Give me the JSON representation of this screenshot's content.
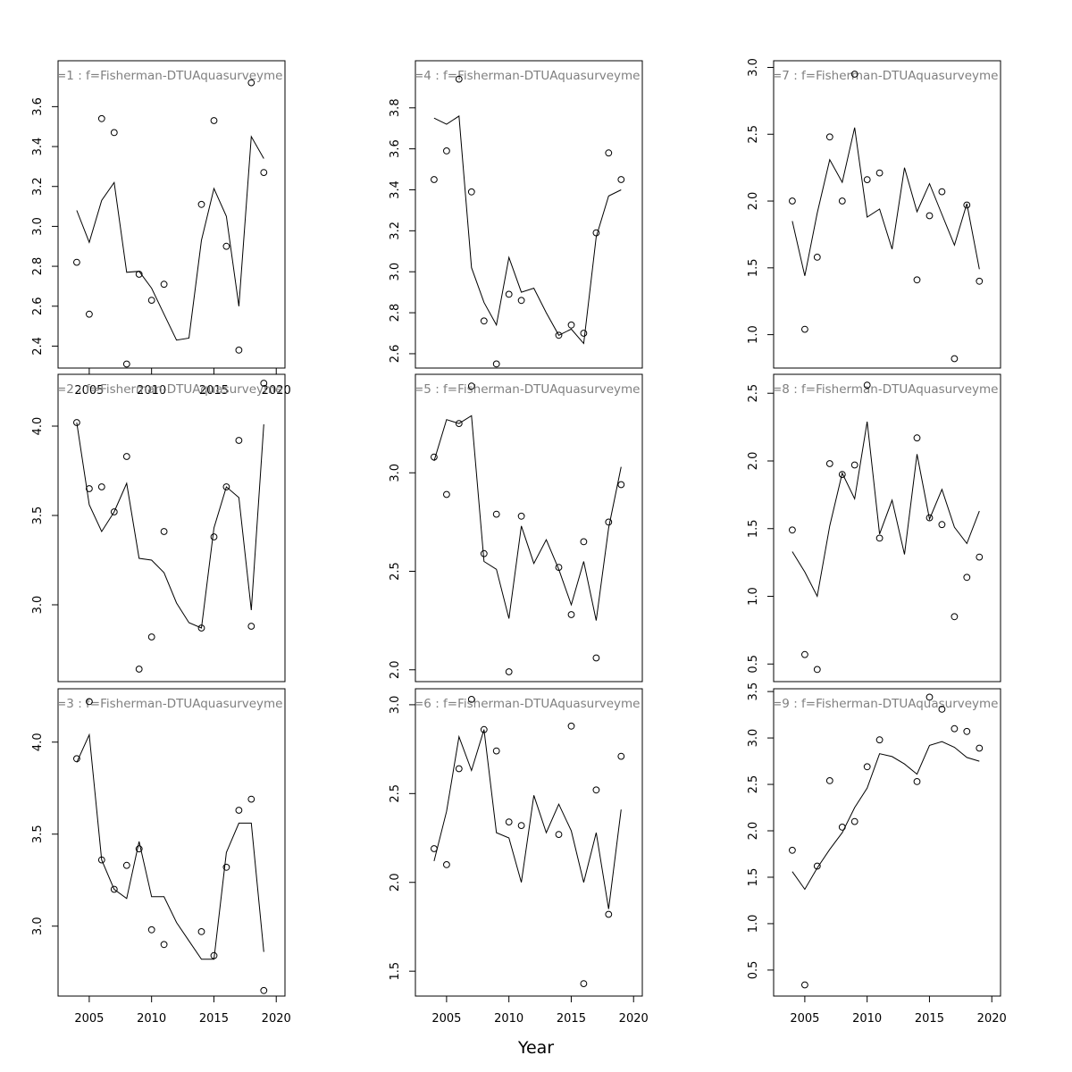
{
  "xlabel": "Year",
  "chart_data": [
    {
      "type": "line",
      "title": "=1 : f=Fisherman-DTUAquasurveyme",
      "x_ticks": [
        2005,
        2010,
        2015,
        2020
      ],
      "show_x_ticks": true,
      "y_ticks": [
        "2.4",
        "2.6",
        "2.8",
        "3.0",
        "3.2",
        "3.4",
        "3.6"
      ],
      "ylim": [
        2.29,
        3.83
      ],
      "xlim": [
        2002.5,
        2020.7
      ],
      "line": {
        "x": [
          2004,
          2005,
          2006,
          2007,
          2008,
          2009,
          2010,
          2011,
          2012,
          2013,
          2014,
          2015,
          2016,
          2017,
          2018,
          2019
        ],
        "y": [
          3.08,
          2.92,
          3.13,
          3.22,
          2.77,
          2.775,
          2.69,
          2.56,
          2.43,
          2.44,
          2.93,
          3.19,
          3.05,
          2.6,
          3.45,
          3.34
        ]
      },
      "points": {
        "x": [
          2004,
          2005,
          2006,
          2007,
          2008,
          2009,
          2010,
          2011,
          2014,
          2015,
          2016,
          2017,
          2018,
          2019
        ],
        "y": [
          2.82,
          2.56,
          3.54,
          3.47,
          2.31,
          2.76,
          2.63,
          2.71,
          3.11,
          3.53,
          2.9,
          2.38,
          3.72,
          3.27
        ]
      }
    },
    {
      "type": "line",
      "title": "=2 : f=Fisherman-DTUAquasurveyme",
      "x_ticks": [
        2005,
        2010,
        2015,
        2020
      ],
      "show_x_ticks": false,
      "y_ticks": [
        "3.0",
        "3.5",
        "4.0"
      ],
      "ylim": [
        2.57,
        4.29
      ],
      "xlim": [
        2002.5,
        2020.7
      ],
      "line": {
        "x": [
          2004,
          2005,
          2006,
          2007,
          2008,
          2009,
          2010,
          2011,
          2012,
          2013,
          2014,
          2015,
          2016,
          2017,
          2018,
          2019
        ],
        "y": [
          4.02,
          3.56,
          3.41,
          3.52,
          3.68,
          3.26,
          3.25,
          3.18,
          3.01,
          2.9,
          2.87,
          3.43,
          3.66,
          3.6,
          2.97,
          4.01
        ]
      },
      "points": {
        "x": [
          2004,
          2005,
          2006,
          2007,
          2008,
          2009,
          2010,
          2011,
          2014,
          2015,
          2016,
          2017,
          2018,
          2019
        ],
        "y": [
          4.02,
          3.65,
          3.66,
          3.52,
          3.83,
          2.64,
          2.82,
          3.41,
          2.87,
          3.38,
          3.66,
          3.92,
          2.88,
          4.24
        ]
      }
    },
    {
      "type": "line",
      "title": "=3 : f=Fisherman-DTUAquasurveyme",
      "x_ticks": [
        2005,
        2010,
        2015,
        2020
      ],
      "show_x_ticks": true,
      "y_ticks": [
        "3.0",
        "3.5",
        "4.0"
      ],
      "ylim": [
        2.62,
        4.29
      ],
      "xlim": [
        2002.5,
        2020.7
      ],
      "line": {
        "x": [
          2004,
          2005,
          2006,
          2007,
          2008,
          2009,
          2010,
          2011,
          2012,
          2013,
          2014,
          2015,
          2016,
          2017,
          2018,
          2019
        ],
        "y": [
          3.89,
          4.04,
          3.36,
          3.2,
          3.15,
          3.46,
          3.16,
          3.16,
          3.02,
          2.92,
          2.82,
          2.82,
          3.4,
          3.56,
          3.56,
          2.86
        ]
      },
      "points": {
        "x": [
          2004,
          2005,
          2006,
          2007,
          2008,
          2009,
          2010,
          2011,
          2014,
          2015,
          2016,
          2017,
          2018,
          2019
        ],
        "y": [
          3.91,
          4.22,
          3.36,
          3.2,
          3.33,
          3.42,
          2.98,
          2.9,
          2.97,
          2.84,
          3.32,
          3.63,
          3.69,
          2.65
        ]
      }
    },
    {
      "type": "line",
      "title": "=4 : f=Fisherman-DTUAquasurveyme",
      "x_ticks": [
        2005,
        2010,
        2015,
        2020
      ],
      "show_x_ticks": false,
      "y_ticks": [
        "2.6",
        "2.8",
        "3.0",
        "3.2",
        "3.4",
        "3.6",
        "3.8"
      ],
      "ylim": [
        2.53,
        4.03
      ],
      "xlim": [
        2002.5,
        2020.7
      ],
      "line": {
        "x": [
          2004,
          2005,
          2006,
          2007,
          2008,
          2009,
          2010,
          2011,
          2012,
          2013,
          2014,
          2015,
          2016,
          2017,
          2018,
          2019
        ],
        "y": [
          3.75,
          3.72,
          3.76,
          3.02,
          2.85,
          2.74,
          3.07,
          2.9,
          2.92,
          2.8,
          2.69,
          2.72,
          2.65,
          3.17,
          3.37,
          3.4
        ]
      },
      "points": {
        "x": [
          2004,
          2005,
          2006,
          2007,
          2008,
          2009,
          2010,
          2011,
          2014,
          2015,
          2016,
          2017,
          2018,
          2019
        ],
        "y": [
          3.45,
          3.59,
          3.94,
          3.39,
          2.76,
          2.55,
          2.89,
          2.86,
          2.69,
          2.74,
          2.7,
          3.19,
          3.58,
          3.45
        ]
      }
    },
    {
      "type": "line",
      "title": "=5 : f=Fisherman-DTUAquasurveyme",
      "x_ticks": [
        2005,
        2010,
        2015,
        2020
      ],
      "show_x_ticks": false,
      "y_ticks": [
        "2.0",
        "2.5",
        "3.0"
      ],
      "ylim": [
        1.94,
        3.5
      ],
      "xlim": [
        2002.5,
        2020.7
      ],
      "line": {
        "x": [
          2004,
          2005,
          2006,
          2007,
          2008,
          2009,
          2010,
          2011,
          2012,
          2013,
          2014,
          2015,
          2016,
          2017,
          2018,
          2019
        ],
        "y": [
          3.06,
          3.27,
          3.25,
          3.29,
          2.55,
          2.51,
          2.26,
          2.73,
          2.54,
          2.66,
          2.51,
          2.33,
          2.55,
          2.25,
          2.72,
          3.03
        ]
      },
      "points": {
        "x": [
          2004,
          2005,
          2006,
          2007,
          2008,
          2009,
          2010,
          2011,
          2014,
          2015,
          2016,
          2017,
          2018,
          2019
        ],
        "y": [
          3.08,
          2.89,
          3.25,
          3.44,
          2.59,
          2.79,
          1.99,
          2.78,
          2.52,
          2.28,
          2.65,
          2.06,
          2.75,
          2.94
        ]
      }
    },
    {
      "type": "line",
      "title": "=6 : f=Fisherman-DTUAquasurveyme",
      "x_ticks": [
        2005,
        2010,
        2015,
        2020
      ],
      "show_x_ticks": true,
      "y_ticks": [
        "1.5",
        "2.0",
        "2.5",
        "3.0"
      ],
      "ylim": [
        1.36,
        3.09
      ],
      "xlim": [
        2002.5,
        2020.7
      ],
      "line": {
        "x": [
          2004,
          2005,
          2006,
          2007,
          2008,
          2009,
          2010,
          2011,
          2012,
          2013,
          2014,
          2015,
          2016,
          2017,
          2018,
          2019
        ],
        "y": [
          2.12,
          2.4,
          2.82,
          2.63,
          2.86,
          2.28,
          2.25,
          2.0,
          2.49,
          2.28,
          2.44,
          2.29,
          2.0,
          2.28,
          1.85,
          2.41
        ]
      },
      "points": {
        "x": [
          2004,
          2005,
          2006,
          2007,
          2008,
          2009,
          2010,
          2011,
          2014,
          2015,
          2016,
          2017,
          2018,
          2019
        ],
        "y": [
          2.19,
          2.1,
          2.64,
          3.03,
          2.86,
          2.74,
          2.34,
          2.32,
          2.27,
          2.88,
          1.43,
          2.52,
          1.82,
          2.71
        ]
      }
    },
    {
      "type": "line",
      "title": "=7 : f=Fisherman-DTUAquasurveyme",
      "x_ticks": [
        2005,
        2010,
        2015,
        2020
      ],
      "show_x_ticks": false,
      "y_ticks": [
        "1.0",
        "1.5",
        "2.0",
        "2.5",
        "3.0"
      ],
      "ylim": [
        0.75,
        3.05
      ],
      "xlim": [
        2002.5,
        2020.7
      ],
      "line": {
        "x": [
          2004,
          2005,
          2006,
          2007,
          2008,
          2009,
          2010,
          2011,
          2012,
          2013,
          2014,
          2015,
          2016,
          2017,
          2018,
          2019
        ],
        "y": [
          1.85,
          1.44,
          1.91,
          2.31,
          2.14,
          2.55,
          1.88,
          1.94,
          1.64,
          2.25,
          1.92,
          2.13,
          1.9,
          1.67,
          1.98,
          1.49
        ]
      },
      "points": {
        "x": [
          2004,
          2005,
          2006,
          2007,
          2008,
          2009,
          2010,
          2011,
          2014,
          2015,
          2016,
          2017,
          2018,
          2019
        ],
        "y": [
          2.0,
          1.04,
          1.58,
          2.48,
          2.0,
          2.95,
          2.16,
          2.21,
          1.41,
          1.89,
          2.07,
          0.82,
          1.97,
          1.4
        ]
      }
    },
    {
      "type": "line",
      "title": "=8 : f=Fisherman-DTUAquasurveyme",
      "x_ticks": [
        2005,
        2010,
        2015,
        2020
      ],
      "show_x_ticks": false,
      "y_ticks": [
        "0.5",
        "1.0",
        "1.5",
        "2.0",
        "2.5"
      ],
      "ylim": [
        0.37,
        2.64
      ],
      "xlim": [
        2002.5,
        2020.7
      ],
      "line": {
        "x": [
          2004,
          2005,
          2006,
          2007,
          2008,
          2009,
          2010,
          2011,
          2012,
          2013,
          2014,
          2015,
          2016,
          2017,
          2018,
          2019
        ],
        "y": [
          1.33,
          1.18,
          1.0,
          1.52,
          1.91,
          1.72,
          2.29,
          1.46,
          1.71,
          1.31,
          2.05,
          1.57,
          1.79,
          1.51,
          1.39,
          1.63
        ]
      },
      "points": {
        "x": [
          2004,
          2005,
          2006,
          2007,
          2008,
          2009,
          2010,
          2011,
          2014,
          2015,
          2016,
          2017,
          2018,
          2019
        ],
        "y": [
          1.49,
          0.57,
          0.46,
          1.98,
          1.9,
          1.97,
          2.56,
          1.43,
          2.17,
          1.58,
          1.53,
          0.85,
          1.14,
          1.29
        ]
      }
    },
    {
      "type": "line",
      "title": "=9 : f=Fisherman-DTUAquasurveyme",
      "x_ticks": [
        2005,
        2010,
        2015,
        2020
      ],
      "show_x_ticks": true,
      "y_ticks": [
        "0.5",
        "1.0",
        "1.5",
        "2.0",
        "2.5",
        "3.0",
        "3.5"
      ],
      "ylim": [
        0.22,
        3.53
      ],
      "xlim": [
        2002.5,
        2020.7
      ],
      "line": {
        "x": [
          2004,
          2005,
          2006,
          2007,
          2008,
          2009,
          2010,
          2011,
          2012,
          2013,
          2014,
          2015,
          2016,
          2017,
          2018,
          2019
        ],
        "y": [
          1.56,
          1.37,
          1.6,
          1.8,
          1.98,
          2.25,
          2.46,
          2.83,
          2.8,
          2.72,
          2.61,
          2.92,
          2.96,
          2.9,
          2.79,
          2.75
        ]
      },
      "points": {
        "x": [
          2004,
          2005,
          2006,
          2007,
          2008,
          2009,
          2010,
          2011,
          2014,
          2015,
          2016,
          2017,
          2018,
          2019
        ],
        "y": [
          1.79,
          0.34,
          1.62,
          2.54,
          2.04,
          2.1,
          2.69,
          2.98,
          2.53,
          3.44,
          3.31,
          3.1,
          3.07,
          2.89
        ]
      }
    }
  ]
}
